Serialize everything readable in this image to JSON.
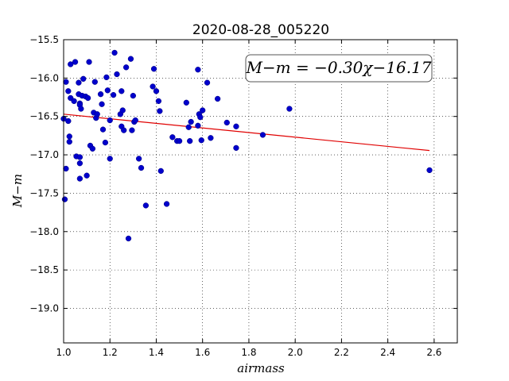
{
  "chart_data": {
    "type": "scatter",
    "title": "2020-08-28_005220",
    "xlabel": "airmass",
    "ylabel": "M−m",
    "xlim": [
      1.0,
      2.7
    ],
    "ylim": [
      -15.5,
      -19.45
    ],
    "y_axis_inverted": true,
    "grid": true,
    "xticks": [
      1.0,
      1.2,
      1.4,
      1.6,
      1.8,
      2.0,
      2.2,
      2.4,
      2.6
    ],
    "xtick_labels": [
      "1.0",
      "1.2",
      "1.4",
      "1.6",
      "1.8",
      "2.0",
      "2.2",
      "2.4",
      "2.6"
    ],
    "yticks": [
      -15.5,
      -16.0,
      -16.5,
      -17.0,
      -17.5,
      -18.0,
      -18.5,
      -19.0
    ],
    "ytick_labels": [
      "−15.5",
      "−16.0",
      "−16.5",
      "−17.0",
      "−17.5",
      "−18.0",
      "−18.5",
      "−19.0"
    ],
    "annotation": "M−m = −0.30χ−16.17",
    "fit": {
      "slope": -0.3,
      "intercept": -16.17,
      "x_range": [
        1.0,
        2.58
      ],
      "color": "#e00000"
    },
    "point_color": "#0000cc",
    "points": [
      [
        1.0,
        -16.53
      ],
      [
        1.01,
        -16.05
      ],
      [
        1.01,
        -17.18
      ],
      [
        1.005,
        -17.58
      ],
      [
        1.02,
        -16.17
      ],
      [
        1.02,
        -16.56
      ],
      [
        1.025,
        -16.76
      ],
      [
        1.025,
        -16.83
      ],
      [
        1.03,
        -16.26
      ],
      [
        1.03,
        -15.82
      ],
      [
        1.045,
        -16.3
      ],
      [
        1.05,
        -15.79
      ],
      [
        1.055,
        -17.02
      ],
      [
        1.065,
        -16.06
      ],
      [
        1.065,
        -16.21
      ],
      [
        1.07,
        -16.33
      ],
      [
        1.07,
        -16.35
      ],
      [
        1.07,
        -17.03
      ],
      [
        1.07,
        -17.11
      ],
      [
        1.07,
        -17.31
      ],
      [
        1.075,
        -16.4
      ],
      [
        1.08,
        -16.23
      ],
      [
        1.085,
        -16.01
      ],
      [
        1.095,
        -16.24
      ],
      [
        1.1,
        -17.27
      ],
      [
        1.105,
        -16.26
      ],
      [
        1.11,
        -15.79
      ],
      [
        1.115,
        -16.88
      ],
      [
        1.125,
        -16.92
      ],
      [
        1.13,
        -16.45
      ],
      [
        1.135,
        -16.05
      ],
      [
        1.14,
        -16.52
      ],
      [
        1.145,
        -16.47
      ],
      [
        1.16,
        -16.21
      ],
      [
        1.165,
        -16.34
      ],
      [
        1.17,
        -16.67
      ],
      [
        1.18,
        -16.84
      ],
      [
        1.185,
        -15.99
      ],
      [
        1.19,
        -16.16
      ],
      [
        1.2,
        -16.55
      ],
      [
        1.2,
        -17.05
      ],
      [
        1.215,
        -16.22
      ],
      [
        1.22,
        -15.67
      ],
      [
        1.23,
        -15.95
      ],
      [
        1.245,
        -16.47
      ],
      [
        1.25,
        -16.17
      ],
      [
        1.25,
        -16.63
      ],
      [
        1.255,
        -16.42
      ],
      [
        1.26,
        -16.68
      ],
      [
        1.27,
        -15.86
      ],
      [
        1.28,
        -18.09
      ],
      [
        1.29,
        -15.75
      ],
      [
        1.295,
        -16.68
      ],
      [
        1.3,
        -16.23
      ],
      [
        1.305,
        -16.57
      ],
      [
        1.31,
        -16.55
      ],
      [
        1.325,
        -17.05
      ],
      [
        1.335,
        -17.17
      ],
      [
        1.355,
        -17.66
      ],
      [
        1.385,
        -16.11
      ],
      [
        1.39,
        -15.88
      ],
      [
        1.4,
        -16.17
      ],
      [
        1.41,
        -16.3
      ],
      [
        1.415,
        -16.43
      ],
      [
        1.42,
        -17.21
      ],
      [
        1.445,
        -17.64
      ],
      [
        1.47,
        -16.77
      ],
      [
        1.49,
        -16.82
      ],
      [
        1.5,
        -16.82
      ],
      [
        1.53,
        -16.32
      ],
      [
        1.54,
        -16.64
      ],
      [
        1.545,
        -16.82
      ],
      [
        1.55,
        -16.57
      ],
      [
        1.58,
        -15.89
      ],
      [
        1.58,
        -16.62
      ],
      [
        1.585,
        -16.47
      ],
      [
        1.59,
        -16.51
      ],
      [
        1.595,
        -16.81
      ],
      [
        1.6,
        -16.42
      ],
      [
        1.62,
        -16.06
      ],
      [
        1.635,
        -16.78
      ],
      [
        1.665,
        -16.27
      ],
      [
        1.705,
        -16.58
      ],
      [
        1.745,
        -16.63
      ],
      [
        1.745,
        -16.91
      ],
      [
        1.86,
        -16.74
      ],
      [
        1.975,
        -16.4
      ],
      [
        2.58,
        -17.2
      ]
    ]
  }
}
